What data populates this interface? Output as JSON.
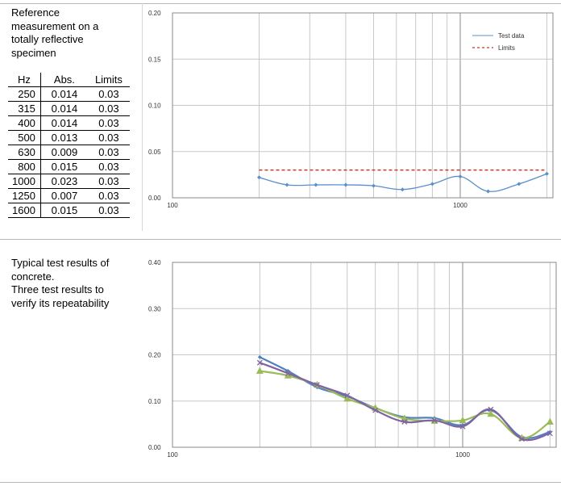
{
  "top": {
    "caption": "Reference\nmeasurement on a\ntotally reflective\nspecimen",
    "table": {
      "headers": [
        "Hz",
        "Abs.",
        "Limits"
      ],
      "rows": [
        [
          "250",
          "0.014",
          "0.03"
        ],
        [
          "315",
          "0.014",
          "0.03"
        ],
        [
          "400",
          "0.014",
          "0.03"
        ],
        [
          "500",
          "0.013",
          "0.03"
        ],
        [
          "630",
          "0.009",
          "0.03"
        ],
        [
          "800",
          "0.015",
          "0.03"
        ],
        [
          "1000",
          "0.023",
          "0.03"
        ],
        [
          "1250",
          "0.007",
          "0.03"
        ],
        [
          "1600",
          "0.015",
          "0.03"
        ]
      ]
    }
  },
  "bottom": {
    "caption": "Typical test results of\nconcrete.\nThree test results to\nverify its repeatability"
  },
  "chart_data": [
    {
      "type": "line",
      "x_scale": "log",
      "xlim": [
        100,
        2100
      ],
      "ylim": [
        0,
        0.2
      ],
      "x_tick_labels": [
        "100",
        "1000"
      ],
      "y_tick_labels": [
        "0.00",
        "0.05",
        "0.10",
        "0.15",
        "0.20"
      ],
      "grid": true,
      "legend_position": "top-right",
      "series": [
        {
          "name": "Test data",
          "color": "#5b8fc9",
          "x": [
            200,
            250,
            315,
            400,
            500,
            630,
            800,
            1000,
            1250,
            1600,
            2000
          ],
          "y": [
            0.022,
            0.014,
            0.014,
            0.014,
            0.013,
            0.009,
            0.015,
            0.023,
            0.007,
            0.015,
            0.026
          ]
        },
        {
          "name": "Limits",
          "color": "#c0392b",
          "dashed": true,
          "x": [
            200,
            2000
          ],
          "y": [
            0.03,
            0.03
          ]
        }
      ]
    },
    {
      "type": "line",
      "x_scale": "log",
      "xlim": [
        100,
        2100
      ],
      "ylim": [
        0,
        0.4
      ],
      "x_tick_labels": [
        "100",
        "1000"
      ],
      "y_tick_labels": [
        "0.00",
        "0.10",
        "0.20",
        "0.30",
        "0.40"
      ],
      "grid": true,
      "series": [
        {
          "color": "#4f81bd",
          "marker": "diamond",
          "x": [
            200,
            250,
            315,
            400,
            500,
            630,
            800,
            1000,
            1250,
            1600,
            2000
          ],
          "y": [
            0.195,
            0.165,
            0.13,
            0.11,
            0.085,
            0.065,
            0.063,
            0.048,
            0.08,
            0.022,
            0.033
          ]
        },
        {
          "color": "#9bbb59",
          "marker": "triangle",
          "x": [
            200,
            250,
            315,
            400,
            500,
            630,
            800,
            1000,
            1250,
            1600,
            2000
          ],
          "y": [
            0.165,
            0.155,
            0.135,
            0.105,
            0.085,
            0.062,
            0.057,
            0.058,
            0.072,
            0.02,
            0.055
          ]
        },
        {
          "color": "#8064a2",
          "marker": "x",
          "x": [
            200,
            250,
            315,
            400,
            500,
            630,
            800,
            1000,
            1250,
            1600,
            2000
          ],
          "y": [
            0.183,
            0.16,
            0.135,
            0.112,
            0.08,
            0.055,
            0.058,
            0.045,
            0.082,
            0.018,
            0.03
          ]
        }
      ]
    }
  ]
}
